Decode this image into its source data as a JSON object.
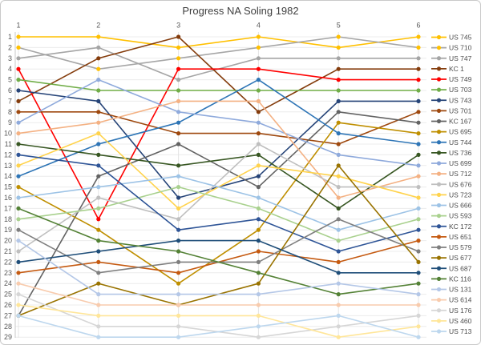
{
  "chart_data": {
    "type": "line",
    "title": "Progress NA Soling 1982",
    "xlabel": "",
    "ylabel": "",
    "x_axis_position": "top",
    "x_ticks": [
      "1",
      "2",
      "3",
      "4",
      "5",
      "6"
    ],
    "y_ticks": [
      "1",
      "2",
      "3",
      "4",
      "5",
      "6",
      "7",
      "8",
      "9",
      "10",
      "11",
      "12",
      "13",
      "14",
      "15",
      "16",
      "17",
      "18",
      "19",
      "20",
      "21",
      "22",
      "23",
      "24",
      "25",
      "26",
      "27",
      "28",
      "29"
    ],
    "y_inverted": true,
    "grid": true,
    "legend_position": "right",
    "series": [
      {
        "name": "US 745",
        "color": "#FFC000",
        "ranks": [
          1,
          1,
          2,
          1,
          2,
          1
        ]
      },
      {
        "name": "US 710",
        "color": "#A6A6A6",
        "marker": "#FFC000",
        "ranks": [
          2,
          4,
          3,
          2,
          1,
          2
        ]
      },
      {
        "name": "US 747",
        "color": "#A5A5A5",
        "ranks": [
          3,
          2,
          5,
          3,
          3,
          3
        ]
      },
      {
        "name": "KC 1",
        "color": "#843C0C",
        "ranks": [
          7,
          3,
          1,
          8,
          4,
          4
        ]
      },
      {
        "name": "US 749",
        "color": "#FF0000",
        "ranks": [
          4,
          18,
          4,
          4,
          5,
          5
        ]
      },
      {
        "name": "US 703",
        "color": "#70AD47",
        "ranks": [
          5,
          6,
          6,
          6,
          6,
          6
        ]
      },
      {
        "name": "US 743",
        "color": "#264478",
        "ranks": [
          6,
          7,
          16,
          14,
          7,
          7
        ]
      },
      {
        "name": "US 701",
        "color": "#9E480E",
        "ranks": [
          8,
          8,
          10,
          10,
          11,
          8
        ]
      },
      {
        "name": "KC 167",
        "color": "#636363",
        "ranks": [
          27,
          14,
          11,
          15,
          8,
          9
        ]
      },
      {
        "name": "US 695",
        "color": "#BF8F00",
        "ranks": [
          15,
          19,
          24,
          19,
          9,
          10
        ]
      },
      {
        "name": "US 744",
        "color": "#2E75B6",
        "ranks": [
          14,
          11,
          9,
          5,
          10,
          11
        ]
      },
      {
        "name": "US 736",
        "color": "#385723",
        "ranks": [
          11,
          12,
          13,
          12,
          17,
          12
        ]
      },
      {
        "name": "US 699",
        "color": "#8FAADC",
        "ranks": [
          9,
          5,
          8,
          9,
          12,
          13
        ]
      },
      {
        "name": "US 712",
        "color": "#F4B183",
        "ranks": [
          10,
          9,
          7,
          7,
          16,
          14
        ]
      },
      {
        "name": "US 676",
        "color": "#BFBFBF",
        "ranks": [
          21,
          16,
          18,
          11,
          15,
          15
        ]
      },
      {
        "name": "US 723",
        "color": "#FFD34D",
        "ranks": [
          13,
          10,
          17,
          13,
          14,
          16
        ]
      },
      {
        "name": "US 666",
        "color": "#9DC3E6",
        "ranks": [
          16,
          15,
          14,
          16,
          19,
          17
        ]
      },
      {
        "name": "US 593",
        "color": "#A9D18E",
        "ranks": [
          18,
          17,
          15,
          17,
          20,
          18
        ]
      },
      {
        "name": "KC 172",
        "color": "#2F5597",
        "ranks": [
          12,
          13,
          19,
          18,
          21,
          19
        ]
      },
      {
        "name": "US 651",
        "color": "#C55A11",
        "ranks": [
          23,
          22,
          23,
          21,
          22,
          20
        ]
      },
      {
        "name": "US 579",
        "color": "#7F7F7F",
        "ranks": [
          19,
          23,
          22,
          22,
          18,
          21
        ]
      },
      {
        "name": "US 677",
        "color": "#997300",
        "ranks": [
          27,
          24,
          26,
          24,
          13,
          22
        ]
      },
      {
        "name": "US 687",
        "color": "#1F4E79",
        "ranks": [
          22,
          21,
          20,
          20,
          23,
          23
        ]
      },
      {
        "name": "KC 116",
        "color": "#538135",
        "ranks": [
          17,
          20,
          21,
          23,
          25,
          24
        ]
      },
      {
        "name": "US 131",
        "color": "#B4C7E7",
        "ranks": [
          20,
          25,
          25,
          25,
          24,
          25
        ]
      },
      {
        "name": "US 614",
        "color": "#F8CBAD",
        "ranks": [
          24,
          26,
          26,
          26,
          26,
          26
        ]
      },
      {
        "name": "US 176",
        "color": "#D6D6D6",
        "ranks": [
          25,
          28,
          28,
          29,
          28,
          27
        ]
      },
      {
        "name": "US 460",
        "color": "#FFE699",
        "ranks": [
          26,
          27,
          27,
          27,
          29,
          28
        ]
      },
      {
        "name": "US 713",
        "color": "#BDD7EE",
        "ranks": [
          27,
          29,
          29,
          28,
          27,
          29
        ]
      }
    ]
  }
}
